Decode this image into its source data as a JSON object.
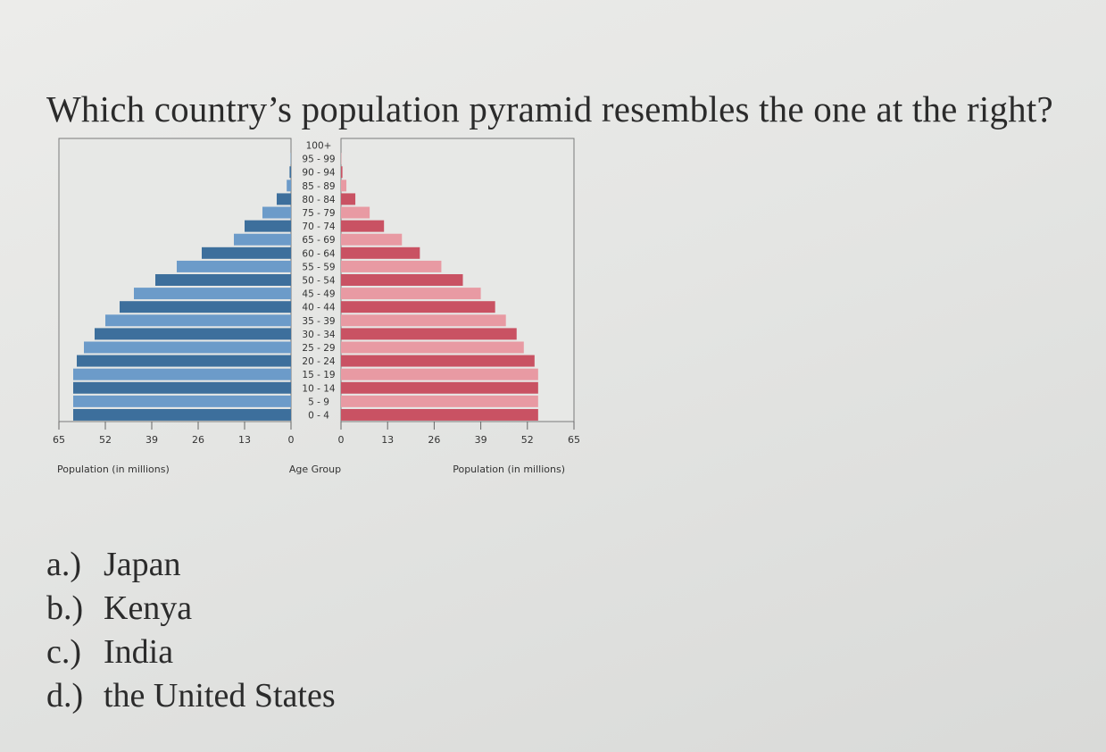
{
  "question": "Which country’s population pyramid resembles the one at the right?",
  "options": [
    {
      "letter": "a.)",
      "text": "Japan"
    },
    {
      "letter": "b.)",
      "text": "Kenya"
    },
    {
      "letter": "c.)",
      "text": "India"
    },
    {
      "letter": "d.)",
      "text": "the United States"
    }
  ],
  "chart_data": {
    "type": "bar",
    "orientation": "horizontal-pyramid",
    "categories": [
      "0 - 4",
      "5 - 9",
      "10 - 14",
      "15 - 19",
      "20 - 24",
      "25 - 29",
      "30 - 34",
      "35 - 39",
      "40 - 44",
      "45 - 49",
      "50 - 54",
      "55 - 59",
      "60 - 64",
      "65 - 69",
      "70 - 74",
      "75 - 79",
      "80 - 84",
      "85 - 89",
      "90 - 94",
      "95 - 99",
      "100+"
    ],
    "series": [
      {
        "side": "left",
        "color": "#3d6f9c",
        "color_alt": "#6c9bc9",
        "values": [
          61,
          61,
          61,
          61,
          60,
          58,
          55,
          52,
          48,
          44,
          38,
          32,
          25,
          16,
          13,
          8,
          4,
          1.2,
          0.4,
          0.1,
          0
        ]
      },
      {
        "side": "right",
        "color": "#c95263",
        "color_alt": "#e89aa3",
        "values": [
          55,
          55,
          55,
          55,
          54,
          51,
          49,
          46,
          43,
          39,
          34,
          28,
          22,
          17,
          12,
          8,
          4,
          1.5,
          0.4,
          0.1,
          0
        ]
      }
    ],
    "xticks": [
      0,
      13,
      26,
      39,
      52,
      65
    ],
    "xlim": [
      0,
      65
    ],
    "xlabel_left": "Population (in millions)",
    "xlabel_center": "Age Group",
    "xlabel_right": "Population (in millions)"
  }
}
